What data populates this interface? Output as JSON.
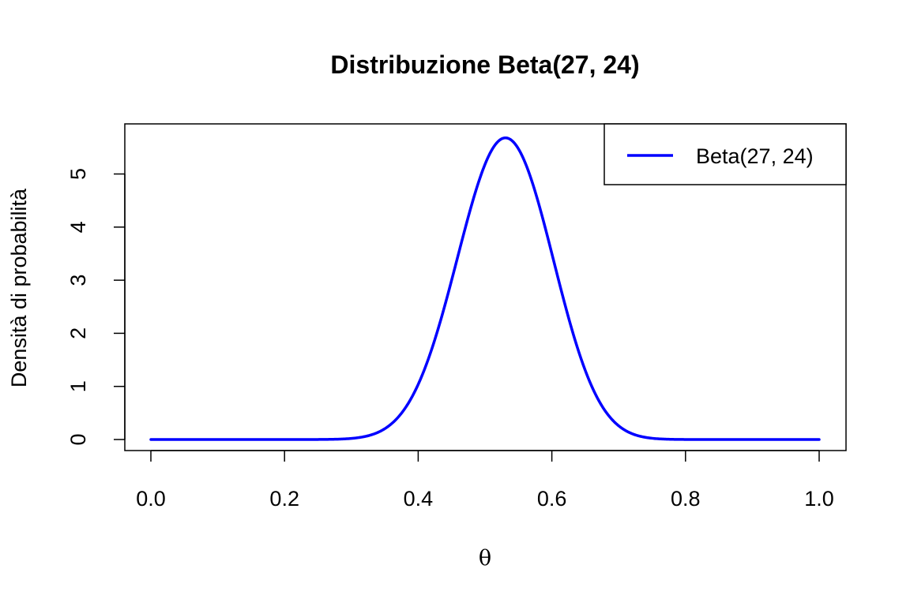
{
  "chart_data": {
    "type": "line",
    "title": "Distribuzione Beta(27, 24)",
    "xlabel": "θ",
    "ylabel": "Densità di probabilità",
    "xlim": [
      0,
      1
    ],
    "ylim": [
      0,
      5.68
    ],
    "x_ticks": [
      0.0,
      0.2,
      0.4,
      0.6,
      0.8,
      1.0
    ],
    "x_tick_labels": [
      "0.0",
      "0.2",
      "0.4",
      "0.6",
      "0.8",
      "1.0"
    ],
    "y_ticks": [
      0,
      1,
      2,
      3,
      4,
      5
    ],
    "y_tick_labels": [
      "0",
      "1",
      "2",
      "3",
      "4",
      "5"
    ],
    "legend_position": "top-right",
    "grid": false,
    "series": [
      {
        "name": "Beta(27, 24)",
        "color": "#0000ff",
        "distribution": {
          "family": "beta",
          "alpha": 27,
          "beta": 24
        },
        "points": [
          [
            0.0,
            0.0
          ],
          [
            0.25,
            0.0
          ],
          [
            0.3,
            0.04
          ],
          [
            0.35,
            0.23
          ],
          [
            0.4,
            0.9
          ],
          [
            0.45,
            2.55
          ],
          [
            0.5,
            4.7
          ],
          [
            0.53,
            5.68
          ],
          [
            0.55,
            5.6
          ],
          [
            0.6,
            4.25
          ],
          [
            0.65,
            2.05
          ],
          [
            0.7,
            0.55
          ],
          [
            0.75,
            0.08
          ],
          [
            0.8,
            0.0
          ],
          [
            1.0,
            0.0
          ]
        ]
      }
    ]
  }
}
